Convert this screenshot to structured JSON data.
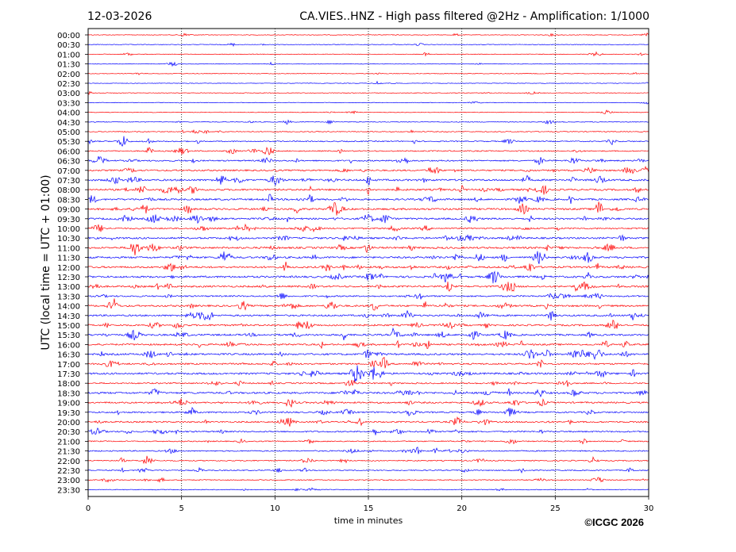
{
  "chart_data": {
    "type": "line",
    "title_left": "12-03-2026",
    "title_right": "CA.VIES..HNZ - High pass filtered @2Hz - Amplification: 1/1000",
    "xlabel": "time in minutes",
    "ylabel": "UTC (local time = UTC + 01:00)",
    "xlim": [
      0,
      30
    ],
    "x_ticks": [
      "0",
      "5",
      "10",
      "15",
      "20",
      "25",
      "30"
    ],
    "x_tick_values": [
      0,
      5,
      10,
      15,
      20,
      25,
      30
    ],
    "vertical_grid": [
      5,
      10,
      15,
      20,
      25
    ],
    "colors": [
      "#ff0000",
      "#0000ff"
    ],
    "rows": [
      {
        "label": "00:00",
        "activity": 0.15
      },
      {
        "label": "00:30",
        "activity": 0.15
      },
      {
        "label": "01:00",
        "activity": 0.15
      },
      {
        "label": "01:30",
        "activity": 0.1
      },
      {
        "label": "02:00",
        "activity": 0.15
      },
      {
        "label": "02:30",
        "activity": 0.1
      },
      {
        "label": "03:00",
        "activity": 0.15
      },
      {
        "label": "03:30",
        "activity": 0.1
      },
      {
        "label": "04:00",
        "activity": 0.15
      },
      {
        "label": "04:30",
        "activity": 0.2
      },
      {
        "label": "05:00",
        "activity": 0.3
      },
      {
        "label": "05:30",
        "activity": 0.45
      },
      {
        "label": "06:00",
        "activity": 0.5
      },
      {
        "label": "06:30",
        "activity": 0.65
      },
      {
        "label": "07:00",
        "activity": 0.75
      },
      {
        "label": "07:30",
        "activity": 0.95
      },
      {
        "label": "08:00",
        "activity": 0.9
      },
      {
        "label": "08:30",
        "activity": 0.9
      },
      {
        "label": "09:00",
        "activity": 0.95
      },
      {
        "label": "09:30",
        "activity": 0.9
      },
      {
        "label": "10:00",
        "activity": 0.7
      },
      {
        "label": "10:30",
        "activity": 0.9
      },
      {
        "label": "11:00",
        "activity": 0.95
      },
      {
        "label": "11:30",
        "activity": 0.95
      },
      {
        "label": "12:00",
        "activity": 0.95
      },
      {
        "label": "12:30",
        "activity": 1.0
      },
      {
        "label": "13:00",
        "activity": 0.9
      },
      {
        "label": "13:30",
        "activity": 0.7
      },
      {
        "label": "14:00",
        "activity": 0.9
      },
      {
        "label": "14:30",
        "activity": 0.85
      },
      {
        "label": "15:00",
        "activity": 0.85
      },
      {
        "label": "15:30",
        "activity": 0.9
      },
      {
        "label": "16:00",
        "activity": 0.85
      },
      {
        "label": "16:30",
        "activity": 0.9
      },
      {
        "label": "17:00",
        "activity": 0.8
      },
      {
        "label": "17:30",
        "activity": 0.95
      },
      {
        "label": "18:00",
        "activity": 0.6
      },
      {
        "label": "18:30",
        "activity": 0.95
      },
      {
        "label": "19:00",
        "activity": 0.8
      },
      {
        "label": "19:30",
        "activity": 0.75
      },
      {
        "label": "20:00",
        "activity": 0.7
      },
      {
        "label": "20:30",
        "activity": 0.65
      },
      {
        "label": "21:00",
        "activity": 0.45
      },
      {
        "label": "21:30",
        "activity": 0.5
      },
      {
        "label": "22:00",
        "activity": 0.45
      },
      {
        "label": "22:30",
        "activity": 0.4
      },
      {
        "label": "23:00",
        "activity": 0.35
      },
      {
        "label": "23:30",
        "activity": 0.2
      }
    ]
  },
  "credit": "©ICGC 2026"
}
